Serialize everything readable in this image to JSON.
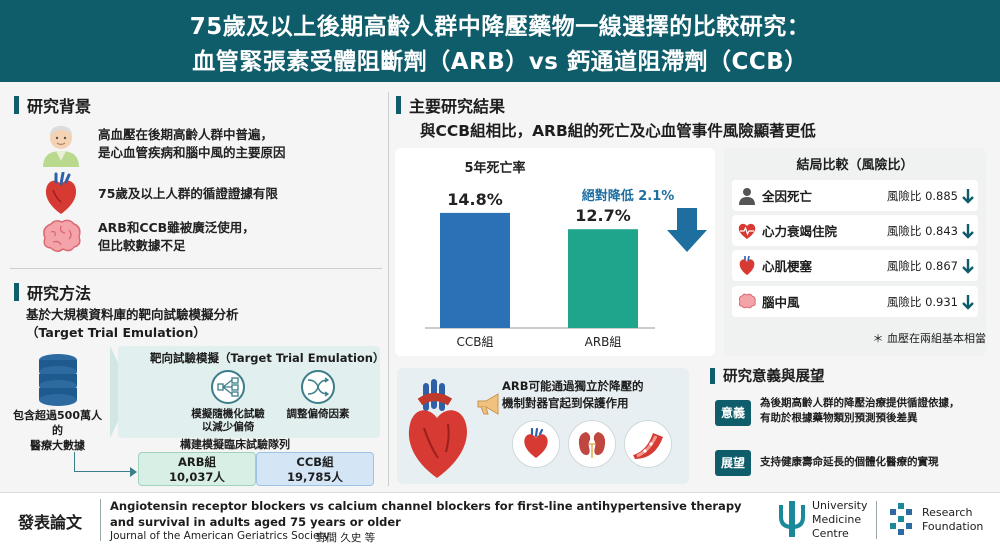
{
  "header": {
    "title_line1": "75歲及以上後期高齡人群中降壓藥物一線選擇的比較研究：",
    "title_line2": "血管緊張素受體阻斷劑（ARB）vs 鈣通道阻滯劑（CCB）"
  },
  "background": {
    "title": "研究背景",
    "items": [
      {
        "icon": "elderly-person-icon",
        "line1": "高血壓在後期高齡人群中普遍，",
        "line2": "是心血管疾病和腦中風的主要原因"
      },
      {
        "icon": "heart-icon",
        "line1": "75歲及以上人群的循證證據有限",
        "line2": ""
      },
      {
        "icon": "brain-icon",
        "line1": "ARB和CCB雖被廣泛使用，",
        "line2": "但比較數據不足"
      }
    ]
  },
  "methods": {
    "title": "研究方法",
    "desc_line1": "基於大規模資料庫的靶向試驗模擬分析",
    "desc_line2": "（Target Trial Emulation）",
    "db_label_line1": "包含超過500萬人的",
    "db_label_line2": "醫療大數據",
    "emulation_title": "靶向試驗模擬（Target Trial Emulation）",
    "emu_item1_line1": "模擬隨機化試驗",
    "emu_item1_line2": "以減少偏倚",
    "emu_item2": "調整偏倚因素",
    "cohort_title": "構建模擬臨床試驗隊列",
    "arb_label": "ARB組",
    "arb_count": "10,037人",
    "ccb_label": "CCB組",
    "ccb_count": "19,785人"
  },
  "results": {
    "title": "主要研究結果",
    "subtitle": "與CCB組相比，ARB組的死亡及心血管事件風險顯著更低"
  },
  "chart_data": {
    "type": "bar",
    "title": "5年死亡率",
    "categories": [
      "CCB組",
      "ARB組"
    ],
    "values": [
      14.8,
      12.7
    ],
    "value_labels": [
      "14.8%",
      "12.7%"
    ],
    "colors": [
      "#2a72b5",
      "#1fa58c"
    ],
    "annotation": "絕對降低  2.1%",
    "ylim": [
      0,
      18
    ]
  },
  "outcomes": {
    "title": "結局比較（風險比）",
    "rows": [
      {
        "icon": "person-icon",
        "name": "全因死亡",
        "value": "風險比 0.885"
      },
      {
        "icon": "heart-failure-icon",
        "name": "心力衰竭住院",
        "value": "風險比 0.843"
      },
      {
        "icon": "heart-icon",
        "name": "心肌梗塞",
        "value": "風險比 0.867"
      },
      {
        "icon": "brain-icon",
        "name": "腦中風",
        "value": "風險比 0.931"
      }
    ],
    "note": "＊ 血壓在兩組基本相當"
  },
  "mechanism": {
    "line1": "ARB可能通過獨立於降壓的",
    "line2": "機制對器官起到保護作用"
  },
  "significance": {
    "title": "研究意義與展望",
    "badge1": "意義",
    "text1_line1": "為後期高齡人群的降壓治療提供循證依據，",
    "text1_line2": "有助於根據藥物類別預測預後差異",
    "badge2": "展望",
    "text2": "支持健康壽命延長的個體化醫療的實現"
  },
  "footer": {
    "label": "發表論文",
    "paper_line1": "Angiotensin receptor blockers vs calcium channel blockers for first-line antihypertensive therapy",
    "paper_line2": "and survival in adults aged 75 years or older",
    "journal": "Journal of the American Geriatrics Society",
    "authors": "野間 久史 等",
    "logo1_line1": "University",
    "logo1_line2": "Medicine",
    "logo1_line3": "Centre",
    "logo2_line1": "Research",
    "logo2_line2": "Foundation"
  },
  "colors": {
    "primary": "#0f5c6b",
    "ccb": "#2a72b5",
    "arb": "#1fa58c",
    "arrow": "#1e6fa0"
  }
}
